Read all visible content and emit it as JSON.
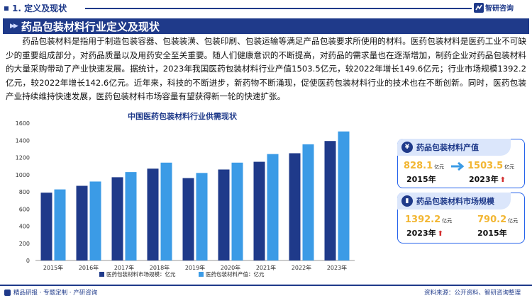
{
  "section": {
    "title": "1. 定义及现状"
  },
  "brand": {
    "name": "智研咨询"
  },
  "banner": {
    "title": "药品包装材料行业定义及现状"
  },
  "paragraph": "药品包装材料是指用于制造包装容器、包装装潢、包装印刷、包装运输等满足产品包装要求所使用的材料。医药包装材料是医药工业不可缺少的重要组成部分，对药品质量以及用药安全至关重要。随人们健康意识的不断提高，对药品的需求量也在逐渐增加，制药企业对药品包装材料的大量采购带动了产业快速发展。据统计，2023年我国医药包装材料行业产值1503.5亿元，较2022年增长149.6亿元；行业市场规模1392.2亿元，较2022年增长142.6亿元。近年来，科技的不断进步，新药物不断涌现，促使医药包装材料行业的技术也在不断创新。同时，医药包装产业持续维持快速发展，医药包装材料市场容量有望获得新一轮的快速扩张。",
  "chart_data": {
    "type": "bar",
    "title": "中国医药包装材料行业供需现状",
    "categories": [
      "2015年",
      "2016年",
      "2017年",
      "2018年",
      "2019年",
      "2020年",
      "2021年",
      "2022年",
      "2023年"
    ],
    "series": [
      {
        "name": "医药包装材料市场规模：亿元",
        "color": "#1f3a8a",
        "values": [
          790.2,
          870,
          970,
          1070,
          960,
          1060,
          1150,
          1249.6,
          1392.2
        ]
      },
      {
        "name": "医药包装材料产值：亿元",
        "color": "#3b9be6",
        "values": [
          828.1,
          920,
          1030,
          1140,
          1020,
          1140,
          1240,
          1353.9,
          1503.5
        ]
      }
    ],
    "yticks": [
      "0",
      "200",
      "400",
      "600",
      "800",
      "1000",
      "1200",
      "1400",
      "1600"
    ],
    "ylim": [
      0,
      1600
    ]
  },
  "card_output": {
    "title": "药品包装材料产值",
    "start_value": "828.1",
    "start_unit": "亿元",
    "start_year": "2015年",
    "end_value": "1503.5",
    "end_unit": "亿元",
    "end_year": "2023年"
  },
  "card_market": {
    "title": "药品包装材料市场规模",
    "latest_value": "1392.2",
    "latest_unit": "亿元",
    "latest_year": "2023年",
    "base_value": "790.2",
    "base_unit": "亿元",
    "base_year": "2015年"
  },
  "footer": {
    "left": "精品研报 · 专题定制 · 产研咨询",
    "source": "资料来源：公开资料、智研咨询整理"
  },
  "colors": {
    "navy": "#1f3a8a",
    "blue": "#3b9be6",
    "gold": "#f2b632",
    "red": "#d32f2f"
  }
}
